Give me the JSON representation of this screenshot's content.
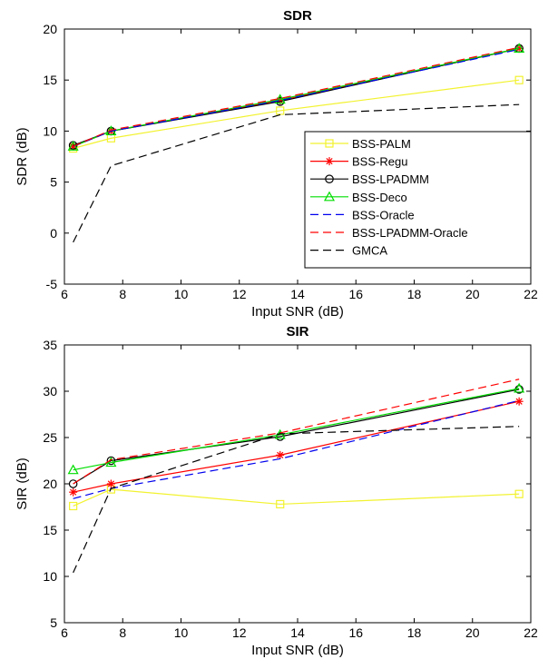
{
  "chart_data": [
    {
      "type": "line",
      "title": "SDR",
      "xlabel": "Input SNR (dB)",
      "ylabel": "SDR (dB)",
      "xlim": [
        6,
        22
      ],
      "ylim": [
        -5,
        20
      ],
      "xticks": [
        6,
        8,
        10,
        12,
        14,
        16,
        18,
        20,
        22
      ],
      "yticks": [
        -5,
        0,
        5,
        10,
        15,
        20
      ],
      "grid": false,
      "legend_position": "inside-right",
      "series": [
        {
          "name": "BSS-PALM",
          "color": "#f2f230",
          "marker": "square",
          "dash": "solid",
          "x": [
            6.3,
            7.6,
            13.4,
            21.6
          ],
          "y": [
            8.3,
            9.3,
            12.0,
            15.0
          ]
        },
        {
          "name": "BSS-Regu",
          "color": "#ff0000",
          "marker": "asterisk",
          "dash": "solid",
          "x": [
            6.3,
            7.6,
            13.4,
            21.6
          ],
          "y": [
            8.5,
            10.0,
            13.0,
            18.1
          ]
        },
        {
          "name": "BSS-LPADMM",
          "color": "#000000",
          "marker": "circle",
          "dash": "solid",
          "x": [
            6.3,
            7.6,
            13.4,
            21.6
          ],
          "y": [
            8.6,
            10.0,
            12.9,
            18.1
          ]
        },
        {
          "name": "BSS-Deco",
          "color": "#00dd00",
          "marker": "triangle",
          "dash": "solid",
          "x": [
            6.3,
            7.6,
            13.4,
            21.6
          ],
          "y": [
            8.5,
            10.0,
            13.1,
            18.1
          ]
        },
        {
          "name": "BSS-Oracle",
          "color": "#0000ee",
          "marker": "none",
          "dash": "dashed",
          "x": [
            6.3,
            7.6,
            13.4,
            21.6
          ],
          "y": [
            8.5,
            10.0,
            13.0,
            18.0
          ]
        },
        {
          "name": "BSS-LPADMM-Oracle",
          "color": "#ff0000",
          "marker": "none",
          "dash": "dashed",
          "x": [
            6.3,
            7.6,
            13.4,
            21.6
          ],
          "y": [
            8.5,
            10.1,
            13.2,
            18.2
          ]
        },
        {
          "name": "GMCA",
          "color": "#000000",
          "marker": "none",
          "dash": "dashed",
          "x": [
            6.3,
            7.6,
            13.4,
            21.6
          ],
          "y": [
            -0.9,
            6.6,
            11.6,
            12.6
          ]
        }
      ]
    },
    {
      "type": "line",
      "title": "SIR",
      "xlabel": "Input SNR (dB)",
      "ylabel": "SIR (dB)",
      "xlim": [
        6,
        22
      ],
      "ylim": [
        5,
        35
      ],
      "xticks": [
        6,
        8,
        10,
        12,
        14,
        16,
        18,
        20,
        22
      ],
      "yticks": [
        5,
        10,
        15,
        20,
        25,
        30,
        35
      ],
      "grid": false,
      "series": [
        {
          "name": "BSS-PALM",
          "color": "#f2f230",
          "marker": "square",
          "dash": "solid",
          "x": [
            6.3,
            7.6,
            13.4,
            21.6
          ],
          "y": [
            17.6,
            19.4,
            17.8,
            18.9
          ]
        },
        {
          "name": "BSS-Regu",
          "color": "#ff0000",
          "marker": "asterisk",
          "dash": "solid",
          "x": [
            6.3,
            7.6,
            13.4,
            21.6
          ],
          "y": [
            19.1,
            20.0,
            23.1,
            28.9
          ]
        },
        {
          "name": "BSS-LPADMM",
          "color": "#000000",
          "marker": "circle",
          "dash": "solid",
          "x": [
            6.3,
            7.6,
            13.4,
            21.6
          ],
          "y": [
            20.0,
            22.5,
            25.1,
            30.2
          ]
        },
        {
          "name": "BSS-Deco",
          "color": "#00dd00",
          "marker": "triangle",
          "dash": "solid",
          "x": [
            6.3,
            7.6,
            13.4,
            21.6
          ],
          "y": [
            21.5,
            22.3,
            25.3,
            30.3
          ]
        },
        {
          "name": "BSS-Oracle",
          "color": "#0000ee",
          "marker": "none",
          "dash": "dashed",
          "x": [
            6.3,
            7.6,
            13.4,
            21.6
          ],
          "y": [
            18.4,
            19.5,
            22.7,
            29.0
          ]
        },
        {
          "name": "BSS-LPADMM-Oracle",
          "color": "#ff0000",
          "marker": "none",
          "dash": "dashed",
          "x": [
            6.3,
            7.6,
            13.4,
            21.6
          ],
          "y": [
            20.0,
            22.6,
            25.5,
            31.3
          ]
        },
        {
          "name": "GMCA",
          "color": "#000000",
          "marker": "none",
          "dash": "dashed",
          "x": [
            6.3,
            7.6,
            13.4,
            21.6
          ],
          "y": [
            10.4,
            19.5,
            25.4,
            26.2
          ]
        }
      ]
    }
  ]
}
